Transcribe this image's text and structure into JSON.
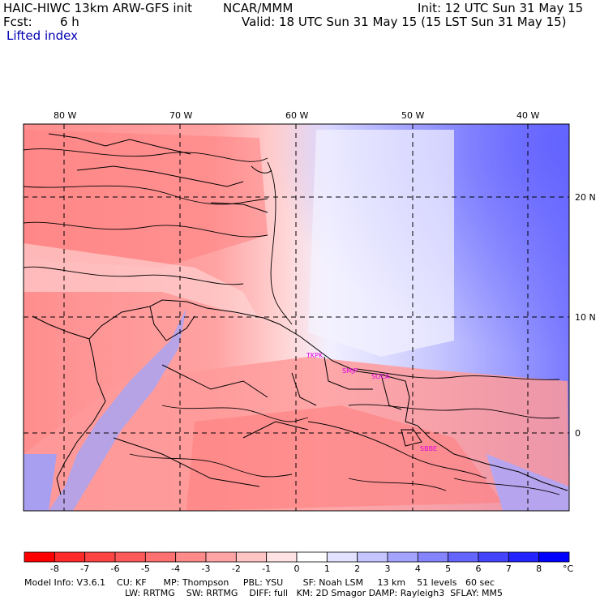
{
  "header": {
    "model_title": "HAIC-HIWC 13km ARW-GFS init",
    "institution": "NCAR/MMM",
    "init_time": "Init: 12 UTC Sun 31 May 15",
    "forecast_label": "Fcst:",
    "forecast_hours": "6 h",
    "valid_time": "Valid: 18 UTC Sun 31 May 15 (15 LST Sun 31 May 15)",
    "field_name": "Lifted index"
  },
  "map": {
    "longitude_labels": [
      "80 W",
      "70 W",
      "60 W",
      "50 W",
      "40 W"
    ],
    "latitude_labels": [
      "20 N",
      "10 N",
      "0"
    ],
    "stations": [
      "TKPK",
      "SMJP",
      "SOCA",
      "SBBE"
    ]
  },
  "colorbar": {
    "tick_labels": [
      "-8",
      "-7",
      "-6",
      "-5",
      "-4",
      "-3",
      "-2",
      "-1",
      "0",
      "1",
      "2",
      "3",
      "4",
      "5",
      "6",
      "7",
      "8"
    ],
    "unit": "°C",
    "colors": [
      "#ff0000",
      "#ff2a2a",
      "#ff4444",
      "#ff5a5a",
      "#ff7070",
      "#ff8a8a",
      "#ffa4a4",
      "#ffc4c4",
      "#ffe2e2",
      "#ffffff",
      "#e2e2ff",
      "#c4c4ff",
      "#a4a4ff",
      "#8484ff",
      "#6464ff",
      "#4444ff",
      "#2424ff",
      "#0000ff"
    ]
  },
  "footer": {
    "line1": "Model Info: V3.6.1    CU: KF      MP: Thompson     PBL: YSU       SF: Noah LSM     13 km    51 levels   60 sec",
    "line2": "LW: RRTMG    SW: RRTMG    DIFF: full   KM: 2D Smagor DAMP: Rayleigh3  SFLAY: MM5"
  }
}
